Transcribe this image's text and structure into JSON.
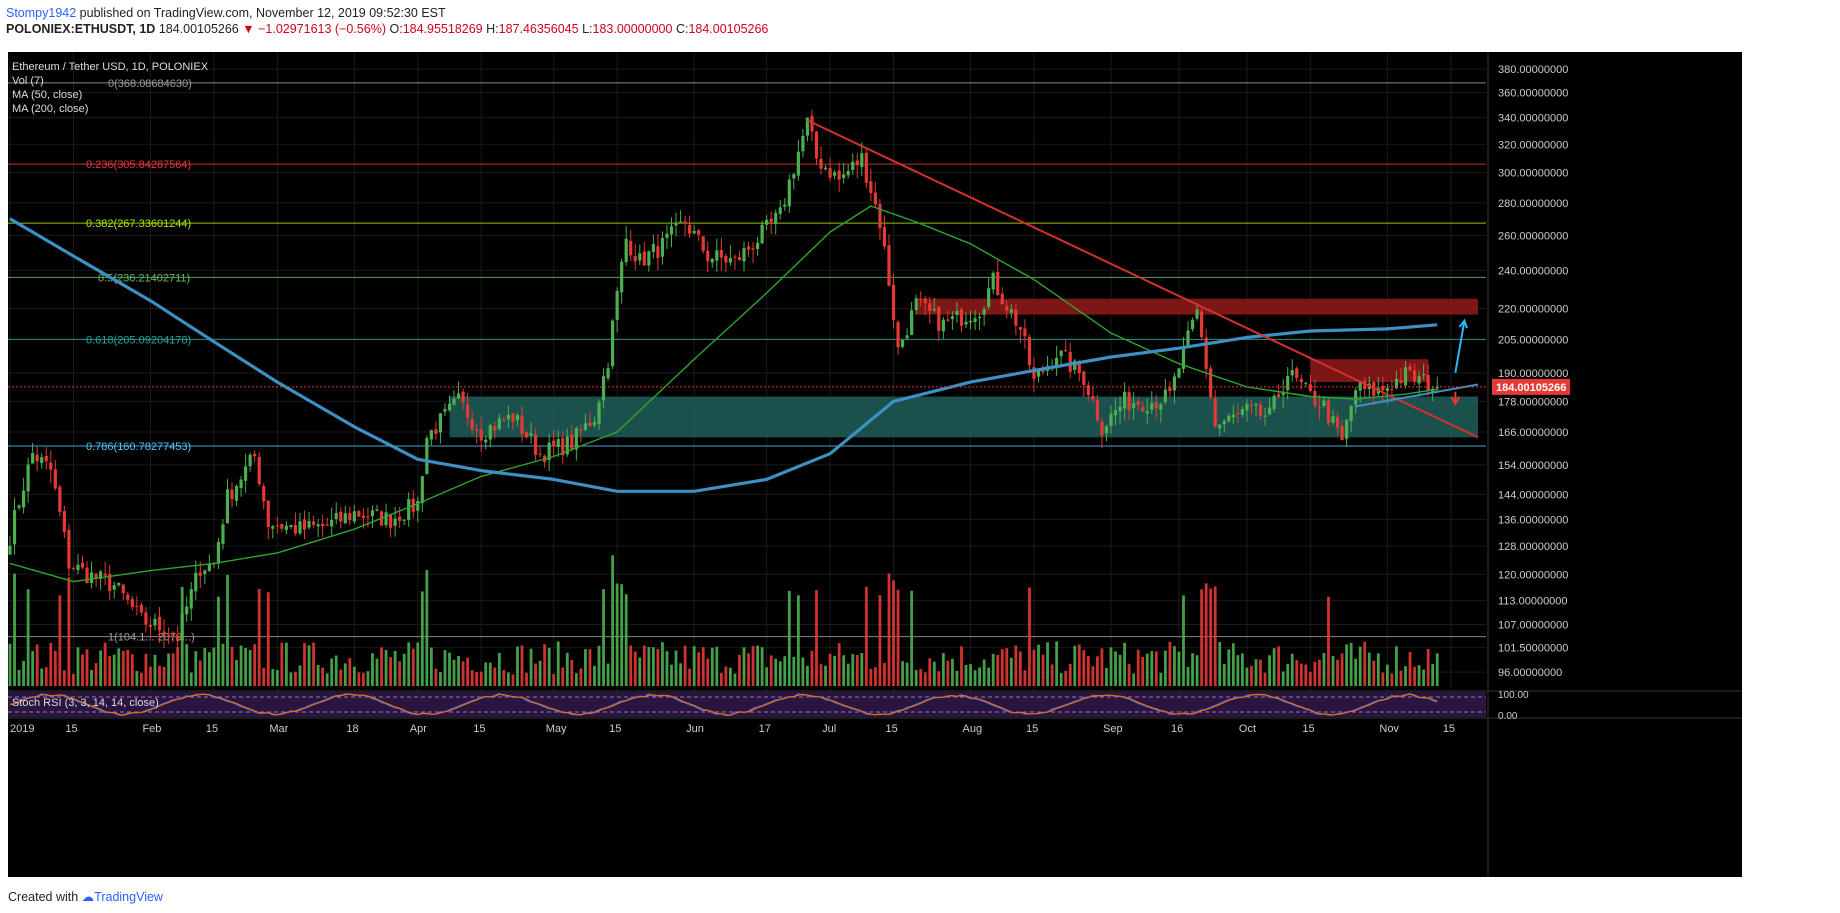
{
  "header": {
    "author": "Stompy1942",
    "published_text": "published on TradingView.com, November 12, 2019 09:52:30 EST",
    "symbol_line": "POLONIEX:ETHUSDT, 1D",
    "last": "184.00105266",
    "change": "−1.02971613 (−0.56%)",
    "o_label": "O:",
    "o_value": "184.95518269",
    "h_label": "H:",
    "h_value": "187.46356045",
    "l_label": "L:",
    "l_value": "183.00000000",
    "c_label": "C:",
    "c_value": "184.00105266"
  },
  "footer": {
    "created_text": "Created with",
    "brand": "TradingView"
  },
  "colors": {
    "background": "#000000",
    "up": "#4caf50",
    "down": "#e53935",
    "ma50": "#2ea52e",
    "ma200": "#3d8fc4",
    "trendline": "#d32f2f",
    "last_price_badge": "#e53935",
    "resistance_zone": "#8b1a1a",
    "support_zone": "#1f5f5a",
    "stoch_bg": "#2a1540",
    "stoch_k": "#2962ff",
    "stoch_d": "#ef6c00"
  },
  "chart_data": {
    "type": "candlestick",
    "legend": [
      "Ethereum / Tether USD, 1D, POLONIEX",
      "Vol (7)",
      "MA (50, close)",
      "MA (200, close)"
    ],
    "y_axis": {
      "scale": "log",
      "range": [
        93,
        395
      ],
      "ticks": [
        "380.00000000",
        "360.00000000",
        "340.00000000",
        "320.00000000",
        "300.00000000",
        "280.00000000",
        "260.00000000",
        "240.00000000",
        "220.00000000",
        "205.00000000",
        "190.00000000",
        "178.00000000",
        "166.00000000",
        "154.00000000",
        "144.00000000",
        "136.00000000",
        "128.00000000",
        "120.00000000",
        "113.00000000",
        "107.00000000",
        "101.50000000",
        "96.00000000"
      ]
    },
    "last_price_label": "184.00105266",
    "last_price": 184.00105266,
    "x_axis": {
      "start": "2019-01-01",
      "end": "2019-11-21",
      "ticks": [
        {
          "label": "2019",
          "date": "2019-01-01"
        },
        {
          "label": "15",
          "date": "2019-01-15"
        },
        {
          "label": "Feb",
          "date": "2019-02-01"
        },
        {
          "label": "15",
          "date": "2019-02-15"
        },
        {
          "label": "Mar",
          "date": "2019-03-01"
        },
        {
          "label": "18",
          "date": "2019-03-18"
        },
        {
          "label": "Apr",
          "date": "2019-04-01"
        },
        {
          "label": "15",
          "date": "2019-04-15"
        },
        {
          "label": "May",
          "date": "2019-05-01"
        },
        {
          "label": "15",
          "date": "2019-05-15"
        },
        {
          "label": "Jun",
          "date": "2019-06-01"
        },
        {
          "label": "17",
          "date": "2019-06-17"
        },
        {
          "label": "Jul",
          "date": "2019-07-01"
        },
        {
          "label": "15",
          "date": "2019-07-15"
        },
        {
          "label": "Aug",
          "date": "2019-08-01"
        },
        {
          "label": "15",
          "date": "2019-08-15"
        },
        {
          "label": "Sep",
          "date": "2019-09-01"
        },
        {
          "label": "16",
          "date": "2019-09-16"
        },
        {
          "label": "Oct",
          "date": "2019-10-01"
        },
        {
          "label": "15",
          "date": "2019-10-15"
        },
        {
          "label": "Nov",
          "date": "2019-11-01"
        },
        {
          "label": "15",
          "date": "2019-11-15"
        }
      ]
    },
    "fib_levels": [
      {
        "label": "0(368.08684630)",
        "value": 368.0868463,
        "color": "#9e9e9e"
      },
      {
        "label": "0.236(305.84287564)",
        "value": 305.84287564,
        "color": "#e53935"
      },
      {
        "label": "0.382(267.33601244)",
        "value": 267.33601244,
        "color": "#aeea00"
      },
      {
        "label": "0.5(236.21402711)",
        "value": 236.21402711,
        "color": "#66bb6a"
      },
      {
        "label": "0.618(205.09204178)",
        "value": 205.09204178,
        "color": "#26a69a"
      },
      {
        "label": "0.786(160.78277453)",
        "value": 160.78277453,
        "color": "#4fc3f7"
      },
      {
        "label": "1(104.1... 2079...)",
        "value": 104.1,
        "color": "#9e9e9e"
      }
    ],
    "zones": [
      {
        "kind": "resistance",
        "from": "2019-07-20",
        "to": "2019-11-21",
        "low": 217,
        "high": 225
      },
      {
        "kind": "resistance",
        "from": "2019-10-15",
        "to": "2019-11-10",
        "low": 186,
        "high": 196
      },
      {
        "kind": "support",
        "from": "2019-04-08",
        "to": "2019-11-21",
        "low": 164,
        "high": 180
      }
    ],
    "trendlines": [
      {
        "name": "descending",
        "color": "#d32f2f",
        "points": [
          [
            "2019-06-26",
            338
          ],
          [
            "2019-11-21",
            164
          ]
        ]
      },
      {
        "name": "rising",
        "color": "#3d8fc4",
        "points": [
          [
            "2019-10-25",
            176
          ],
          [
            "2019-11-21",
            185
          ]
        ]
      }
    ],
    "arrows": [
      {
        "dir": "up",
        "color": "#29b6f6",
        "from": [
          "2019-11-16",
          190
        ],
        "to": [
          "2019-11-18",
          214
        ]
      },
      {
        "dir": "down",
        "color": "#e53935",
        "from": [
          "2019-11-16",
          182
        ],
        "to": [
          "2019-11-16",
          177
        ]
      }
    ],
    "anchors": [
      [
        "2019-01-01",
        131
      ],
      [
        "2019-01-06",
        158
      ],
      [
        "2019-01-10",
        152
      ],
      [
        "2019-01-14",
        123
      ],
      [
        "2019-01-18",
        120
      ],
      [
        "2019-01-24",
        117
      ],
      [
        "2019-01-30",
        108
      ],
      [
        "2019-02-04",
        106
      ],
      [
        "2019-02-07",
        104
      ],
      [
        "2019-02-12",
        122
      ],
      [
        "2019-02-15",
        123
      ],
      [
        "2019-02-18",
        143
      ],
      [
        "2019-02-24",
        157
      ],
      [
        "2019-02-27",
        135
      ],
      [
        "2019-03-06",
        133
      ],
      [
        "2019-03-12",
        134
      ],
      [
        "2019-03-18",
        138
      ],
      [
        "2019-03-26",
        136
      ],
      [
        "2019-04-01",
        141
      ],
      [
        "2019-04-03",
        164
      ],
      [
        "2019-04-10",
        178
      ],
      [
        "2019-04-15",
        166
      ],
      [
        "2019-04-22",
        172
      ],
      [
        "2019-04-28",
        158
      ],
      [
        "2019-05-05",
        162
      ],
      [
        "2019-05-10",
        172
      ],
      [
        "2019-05-13",
        196
      ],
      [
        "2019-05-17",
        258
      ],
      [
        "2019-05-20",
        245
      ],
      [
        "2019-05-25",
        254
      ],
      [
        "2019-05-30",
        268
      ],
      [
        "2019-06-04",
        248
      ],
      [
        "2019-06-10",
        245
      ],
      [
        "2019-06-14",
        255
      ],
      [
        "2019-06-20",
        272
      ],
      [
        "2019-06-26",
        336
      ],
      [
        "2019-06-28",
        310
      ],
      [
        "2019-07-03",
        295
      ],
      [
        "2019-07-08",
        310
      ],
      [
        "2019-07-12",
        268
      ],
      [
        "2019-07-16",
        200
      ],
      [
        "2019-07-20",
        222
      ],
      [
        "2019-07-26",
        212
      ],
      [
        "2019-08-03",
        220
      ],
      [
        "2019-08-06",
        234
      ],
      [
        "2019-08-12",
        210
      ],
      [
        "2019-08-15",
        186
      ],
      [
        "2019-08-20",
        199
      ],
      [
        "2019-08-26",
        188
      ],
      [
        "2019-08-30",
        168
      ],
      [
        "2019-09-04",
        178
      ],
      [
        "2019-09-10",
        178
      ],
      [
        "2019-09-14",
        180
      ],
      [
        "2019-09-18",
        205
      ],
      [
        "2019-09-20",
        218
      ],
      [
        "2019-09-24",
        168
      ],
      [
        "2019-10-01",
        174
      ],
      [
        "2019-10-06",
        172
      ],
      [
        "2019-10-10",
        190
      ],
      [
        "2019-10-15",
        180
      ],
      [
        "2019-10-18",
        176
      ],
      [
        "2019-10-22",
        162
      ],
      [
        "2019-10-25",
        183
      ],
      [
        "2019-10-30",
        182
      ],
      [
        "2019-11-05",
        189
      ],
      [
        "2019-11-08",
        187
      ],
      [
        "2019-11-12",
        184
      ]
    ],
    "ma50_points": [
      [
        "2019-01-01",
        123
      ],
      [
        "2019-01-15",
        118
      ],
      [
        "2019-02-01",
        121
      ],
      [
        "2019-02-15",
        123
      ],
      [
        "2019-03-01",
        126
      ],
      [
        "2019-03-18",
        133
      ],
      [
        "2019-04-01",
        141
      ],
      [
        "2019-04-15",
        150
      ],
      [
        "2019-05-01",
        157
      ],
      [
        "2019-05-15",
        166
      ],
      [
        "2019-06-01",
        196
      ],
      [
        "2019-06-17",
        228
      ],
      [
        "2019-07-01",
        262
      ],
      [
        "2019-07-10",
        278
      ],
      [
        "2019-07-20",
        268
      ],
      [
        "2019-08-01",
        255
      ],
      [
        "2019-08-15",
        235
      ],
      [
        "2019-09-01",
        208
      ],
      [
        "2019-09-16",
        194
      ],
      [
        "2019-10-01",
        184
      ],
      [
        "2019-10-15",
        180
      ],
      [
        "2019-10-25",
        179
      ],
      [
        "2019-11-05",
        181
      ],
      [
        "2019-11-12",
        183
      ]
    ],
    "ma200_points": [
      [
        "2019-01-01",
        270
      ],
      [
        "2019-01-15",
        248
      ],
      [
        "2019-02-01",
        224
      ],
      [
        "2019-02-15",
        204
      ],
      [
        "2019-03-01",
        186
      ],
      [
        "2019-03-18",
        168
      ],
      [
        "2019-04-01",
        156
      ],
      [
        "2019-04-15",
        152
      ],
      [
        "2019-05-01",
        149
      ],
      [
        "2019-05-15",
        145
      ],
      [
        "2019-06-01",
        145
      ],
      [
        "2019-06-17",
        149
      ],
      [
        "2019-07-01",
        158
      ],
      [
        "2019-07-15",
        178
      ],
      [
        "2019-08-01",
        186
      ],
      [
        "2019-08-15",
        191
      ],
      [
        "2019-09-01",
        197
      ],
      [
        "2019-09-16",
        201
      ],
      [
        "2019-10-01",
        206
      ],
      [
        "2019-10-15",
        209
      ],
      [
        "2019-11-01",
        210
      ],
      [
        "2019-11-12",
        212
      ]
    ],
    "volume": {
      "label": "Vol (7)",
      "base": 93,
      "typical_top": 103,
      "spike_top": 128
    },
    "stoch_rsi": {
      "label": "Stoch RSI (3, 3, 14, 14, close)",
      "ticks": [
        "100.00",
        "0.00"
      ],
      "bands": [
        80,
        20
      ]
    }
  }
}
